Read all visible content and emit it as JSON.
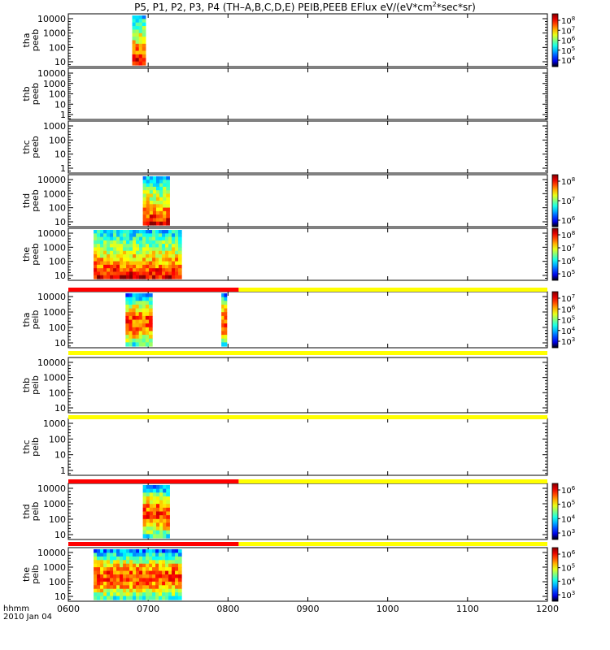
{
  "title": {
    "text_before": "P5, P1, P2, P3, P4 (TH–A,B,C,D,E) PEIB,PEEB EFlux eV/(eV*cm",
    "superscript": "2",
    "text_after": "*sec*sr)"
  },
  "footer": {
    "time_label": "hhmm",
    "date_label": "2010 Jan 04"
  },
  "chart_data": {
    "type": "heatmap",
    "x_ticks": [
      "0600",
      "0700",
      "0800",
      "0900",
      "1000",
      "1100",
      "1200"
    ],
    "x_range": [
      "0600",
      "1200"
    ],
    "y_scale": "log",
    "panels": [
      {
        "name": "thapeeb",
        "ylabel": [
          "tha",
          "peeb"
        ],
        "yticks": [
          "10000",
          "1000",
          "100",
          "10"
        ],
        "colorbar": [
          "10^8",
          "10^7",
          "10^6",
          "10^5",
          "10^4"
        ],
        "data_blocks": [
          {
            "x": [
              "0648",
              "0658"
            ],
            "y": [
              "5",
              "30000"
            ],
            "colormap": "jet"
          }
        ]
      },
      {
        "name": "thbpeeb",
        "ylabel": [
          "thb",
          "peeb"
        ],
        "yticks": [
          "10000",
          "1000",
          "100",
          "10",
          "1"
        ],
        "colorbar": [],
        "data_blocks": []
      },
      {
        "name": "thcpeeb",
        "ylabel": [
          "thc",
          "peeb"
        ],
        "yticks": [
          "1000",
          "100",
          "10",
          "1"
        ],
        "colorbar": [],
        "data_blocks": []
      },
      {
        "name": "thdpeeb",
        "ylabel": [
          "thd",
          "peeb"
        ],
        "yticks": [
          "10000",
          "1000",
          "100",
          "10"
        ],
        "colorbar": [
          "10^8",
          "10^7",
          "10^6"
        ],
        "data_blocks": [
          {
            "x": [
              "0656",
              "0716"
            ],
            "y": [
              "5",
              "30000"
            ],
            "colormap": "jet"
          }
        ]
      },
      {
        "name": "thepeeb",
        "ylabel": [
          "the",
          "peeb"
        ],
        "yticks": [
          "10000",
          "1000",
          "100",
          "10"
        ],
        "colorbar": [
          "10^8",
          "10^7",
          "10^6",
          "10^5"
        ],
        "data_blocks": [
          {
            "x": [
              "0619",
              "0725"
            ],
            "y": [
              "5",
              "30000"
            ],
            "colormap": "jet"
          }
        ]
      },
      {
        "name": "thapeib",
        "ylabel": [
          "tha",
          "peib"
        ],
        "yticks": [
          "10000",
          "1000",
          "100",
          "10"
        ],
        "colorbar": [
          "10^7",
          "10^6",
          "10^5",
          "10^4",
          "10^3"
        ],
        "data_blocks": [
          {
            "x": [
              "0643",
              "0703"
            ],
            "y": [
              "5",
              "25000"
            ],
            "colormap": "jet"
          },
          {
            "x": [
              "0755",
              "0759"
            ],
            "y": [
              "5",
              "25000"
            ],
            "colormap": "jet"
          }
        ]
      },
      {
        "name": "thbpeib",
        "ylabel": [
          "thb",
          "peib"
        ],
        "yticks": [
          "10000",
          "1000",
          "100",
          "10"
        ],
        "colorbar": [],
        "data_blocks": []
      },
      {
        "name": "thcpeib",
        "ylabel": [
          "thc",
          "peib"
        ],
        "yticks": [
          "1000",
          "100",
          "10",
          "1"
        ],
        "colorbar": [],
        "data_blocks": []
      },
      {
        "name": "thdpeib",
        "ylabel": [
          "thd",
          "peib"
        ],
        "yticks": [
          "10000",
          "1000",
          "100",
          "10"
        ],
        "colorbar": [
          "10^6",
          "10^5",
          "10^4",
          "10^3"
        ],
        "data_blocks": [
          {
            "x": [
              "0656",
              "0716"
            ],
            "y": [
              "5",
              "30000"
            ],
            "colormap": "jet"
          }
        ]
      },
      {
        "name": "thepeib",
        "ylabel": [
          "the",
          "peib"
        ],
        "yticks": [
          "10000",
          "1000",
          "100",
          "10"
        ],
        "colorbar": [
          "10^6",
          "10^5",
          "10^4",
          "10^3"
        ],
        "data_blocks": [
          {
            "x": [
              "0619",
              "0725"
            ],
            "y": [
              "5",
              "30000"
            ],
            "colormap": "jet"
          }
        ]
      }
    ],
    "mode_bars": [
      {
        "after_panel": 5,
        "segments": [
          {
            "color": "#ff0000",
            "x": [
              "0600",
              "0808"
            ]
          },
          {
            "color": "#ffff00",
            "x": [
              "0808",
              "1200"
            ]
          }
        ]
      },
      {
        "after_panel": 6,
        "segments": [
          {
            "color": "#ffff00",
            "x": [
              "0600",
              "1200"
            ]
          }
        ]
      },
      {
        "after_panel": 7,
        "segments": [
          {
            "color": "#ffff00",
            "x": [
              "0600",
              "1200"
            ]
          }
        ]
      },
      {
        "after_panel": 8,
        "segments": [
          {
            "color": "#ff0000",
            "x": [
              "0600",
              "0808"
            ]
          },
          {
            "color": "#ffff00",
            "x": [
              "0808",
              "1200"
            ]
          }
        ]
      },
      {
        "after_panel": 9,
        "segments": [
          {
            "color": "#ff0000",
            "x": [
              "0600",
              "0808"
            ]
          },
          {
            "color": "#ffff00",
            "x": [
              "0808",
              "1200"
            ]
          }
        ]
      }
    ],
    "grid": false,
    "legend": "colorbars-right"
  }
}
